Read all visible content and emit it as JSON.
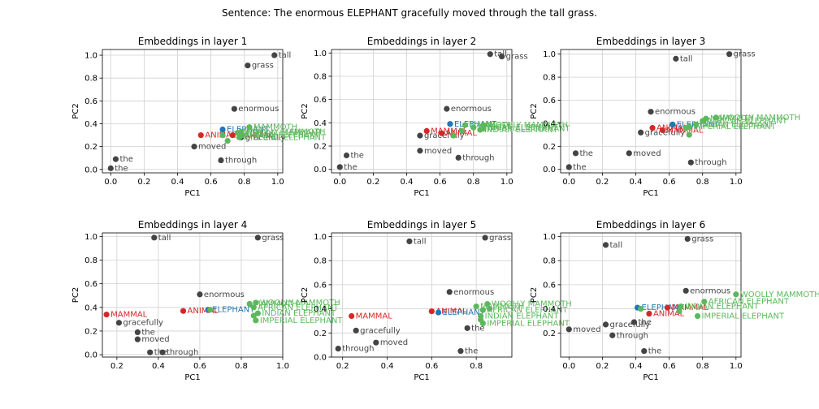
{
  "figure": {
    "title": "Sentence: The enormous ELEPHANT gracefully moved through the tall grass."
  },
  "colors": {
    "word": "#444444",
    "animal": "#d62728",
    "mammal": "#d62728",
    "elephant": "#1f77b4",
    "variant": "#5cb85c",
    "grid": "#d0d0d0"
  },
  "chart_data": [
    {
      "type": "scatter",
      "title": "Embeddings in layer 1",
      "xlabel": "PC1",
      "ylabel": "PC2",
      "xlim": [
        -0.05,
        1.03
      ],
      "ylim": [
        -0.03,
        1.05
      ],
      "xticks": [
        "0.0",
        "0.2",
        "0.4",
        "0.6",
        "0.8",
        "1.0"
      ],
      "yticks": [
        "0.0",
        "0.2",
        "0.4",
        "0.6",
        "0.8",
        "1.0"
      ],
      "grid": true,
      "points": [
        {
          "label": "the",
          "x": 0.0,
          "y": 0.01,
          "group": "word"
        },
        {
          "label": "the",
          "x": 0.03,
          "y": 0.09,
          "group": "word"
        },
        {
          "label": "moved",
          "x": 0.5,
          "y": 0.2,
          "group": "word"
        },
        {
          "label": "through",
          "x": 0.66,
          "y": 0.08,
          "group": "word"
        },
        {
          "label": "enormous",
          "x": 0.74,
          "y": 0.53,
          "group": "word"
        },
        {
          "label": "grass",
          "x": 0.82,
          "y": 0.91,
          "group": "word"
        },
        {
          "label": "tall",
          "x": 0.98,
          "y": 1.0,
          "group": "word"
        },
        {
          "label": "gracefully",
          "x": 0.78,
          "y": 0.28,
          "group": "word"
        },
        {
          "label": "ANIMAL",
          "x": 0.54,
          "y": 0.3,
          "group": "animal"
        },
        {
          "label": "MAMMAL",
          "x": 0.73,
          "y": 0.3,
          "group": "mammal"
        },
        {
          "label": "ELEPHANT",
          "x": 0.67,
          "y": 0.35,
          "group": "elephant"
        },
        {
          "label": "MAMMOTH",
          "x": 0.83,
          "y": 0.37,
          "group": "variant"
        },
        {
          "label": "WOOLLY MAMMOTH",
          "x": 0.78,
          "y": 0.33,
          "group": "variant"
        },
        {
          "label": "AFRICAN ELEPHANT",
          "x": 0.76,
          "y": 0.32,
          "group": "variant"
        },
        {
          "label": "INDIAN ELEPHANT",
          "x": 0.79,
          "y": 0.3,
          "group": "variant"
        },
        {
          "label": "IMPERIAL ELEPHANT",
          "x": 0.77,
          "y": 0.28,
          "group": "variant"
        },
        {
          "label": "",
          "x": 0.67,
          "y": 0.3,
          "group": "variant"
        },
        {
          "label": "",
          "x": 0.7,
          "y": 0.25,
          "group": "variant"
        }
      ]
    },
    {
      "type": "scatter",
      "title": "Embeddings in layer 2",
      "xlabel": "PC1",
      "ylabel": "PC2",
      "xlim": [
        -0.05,
        1.03
      ],
      "ylim": [
        -0.03,
        1.03
      ],
      "xticks": [
        "0.0",
        "0.2",
        "0.4",
        "0.6",
        "0.8",
        "1.0"
      ],
      "yticks": [
        "0.0",
        "0.2",
        "0.4",
        "0.6",
        "0.8",
        "1.0"
      ],
      "grid": true,
      "points": [
        {
          "label": "the",
          "x": 0.0,
          "y": 0.02,
          "group": "word"
        },
        {
          "label": "the",
          "x": 0.04,
          "y": 0.12,
          "group": "word"
        },
        {
          "label": "moved",
          "x": 0.48,
          "y": 0.16,
          "group": "word"
        },
        {
          "label": "through",
          "x": 0.71,
          "y": 0.1,
          "group": "word"
        },
        {
          "label": "enormous",
          "x": 0.64,
          "y": 0.52,
          "group": "word"
        },
        {
          "label": "tall",
          "x": 0.9,
          "y": 0.99,
          "group": "word"
        },
        {
          "label": "grass",
          "x": 0.97,
          "y": 0.97,
          "group": "word"
        },
        {
          "label": "gracefully",
          "x": 0.48,
          "y": 0.29,
          "group": "word"
        },
        {
          "label": "ANIMAL",
          "x": 0.61,
          "y": 0.31,
          "group": "animal"
        },
        {
          "label": "MAMMAL",
          "x": 0.52,
          "y": 0.33,
          "group": "mammal"
        },
        {
          "label": "ELEPHANT",
          "x": 0.66,
          "y": 0.39,
          "group": "elephant"
        },
        {
          "label": "MAMMOTH",
          "x": 0.75,
          "y": 0.38,
          "group": "variant"
        },
        {
          "label": "WOOLLY MAMMOTH",
          "x": 0.86,
          "y": 0.38,
          "group": "variant"
        },
        {
          "label": "AFRICAN ELEPHANT",
          "x": 0.8,
          "y": 0.36,
          "group": "variant"
        },
        {
          "label": "INDIAN ELEPHANT",
          "x": 0.84,
          "y": 0.34,
          "group": "variant"
        },
        {
          "label": "IMPERIAL ELEPHANT",
          "x": 0.86,
          "y": 0.35,
          "group": "variant"
        },
        {
          "label": "",
          "x": 0.68,
          "y": 0.29,
          "group": "variant"
        },
        {
          "label": "",
          "x": 0.73,
          "y": 0.33,
          "group": "variant"
        }
      ]
    },
    {
      "type": "scatter",
      "title": "Embeddings in layer 3",
      "xlabel": "PC1",
      "ylabel": "PC2",
      "xlim": [
        -0.05,
        1.03
      ],
      "ylim": [
        -0.03,
        1.04
      ],
      "xticks": [
        "0.0",
        "0.2",
        "0.4",
        "0.6",
        "0.8",
        "1.0"
      ],
      "yticks": [
        "0.0",
        "0.2",
        "0.4",
        "0.6",
        "0.8",
        "1.0"
      ],
      "grid": true,
      "points": [
        {
          "label": "the",
          "x": 0.0,
          "y": 0.02,
          "group": "word"
        },
        {
          "label": "the",
          "x": 0.04,
          "y": 0.14,
          "group": "word"
        },
        {
          "label": "moved",
          "x": 0.36,
          "y": 0.14,
          "group": "word"
        },
        {
          "label": "through",
          "x": 0.73,
          "y": 0.06,
          "group": "word"
        },
        {
          "label": "enormous",
          "x": 0.49,
          "y": 0.5,
          "group": "word"
        },
        {
          "label": "tall",
          "x": 0.64,
          "y": 0.96,
          "group": "word"
        },
        {
          "label": "grass",
          "x": 0.96,
          "y": 1.0,
          "group": "word"
        },
        {
          "label": "gracefully",
          "x": 0.43,
          "y": 0.32,
          "group": "word"
        },
        {
          "label": "ANIMAL",
          "x": 0.5,
          "y": 0.36,
          "group": "animal"
        },
        {
          "label": "MAMMAL",
          "x": 0.56,
          "y": 0.34,
          "group": "mammal"
        },
        {
          "label": "ELEPHANT",
          "x": 0.62,
          "y": 0.39,
          "group": "elephant"
        },
        {
          "label": "WOOLLY MAMMOTH",
          "x": 0.88,
          "y": 0.45,
          "group": "variant"
        },
        {
          "label": "MAMMOTH",
          "x": 0.82,
          "y": 0.44,
          "group": "variant"
        },
        {
          "label": "AFRICAN ELEPHANT",
          "x": 0.8,
          "y": 0.42,
          "group": "variant"
        },
        {
          "label": "INDIAN ELEPHANT",
          "x": 0.76,
          "y": 0.39,
          "group": "variant"
        },
        {
          "label": "IMPERIAL ELEPHANT",
          "x": 0.72,
          "y": 0.37,
          "group": "variant"
        },
        {
          "label": "",
          "x": 0.72,
          "y": 0.3,
          "group": "variant"
        },
        {
          "label": "",
          "x": 0.7,
          "y": 0.36,
          "group": "variant"
        }
      ]
    },
    {
      "type": "scatter",
      "title": "Embeddings in layer 4",
      "xlabel": "PC1",
      "ylabel": "PC2",
      "xlim": [
        0.13,
        1.0
      ],
      "ylim": [
        -0.02,
        1.03
      ],
      "xticks": [
        "0.2",
        "0.4",
        "0.6",
        "0.8",
        "1.0"
      ],
      "yticks": [
        "0.0",
        "0.2",
        "0.4",
        "0.6",
        "0.8",
        "1.0"
      ],
      "grid": true,
      "points": [
        {
          "label": "MAMMAL",
          "x": 0.15,
          "y": 0.34,
          "group": "mammal"
        },
        {
          "label": "gracefully",
          "x": 0.21,
          "y": 0.27,
          "group": "word"
        },
        {
          "label": "the",
          "x": 0.3,
          "y": 0.19,
          "group": "word"
        },
        {
          "label": "moved",
          "x": 0.3,
          "y": 0.13,
          "group": "word"
        },
        {
          "label": "the",
          "x": 0.36,
          "y": 0.02,
          "group": "word"
        },
        {
          "label": "through",
          "x": 0.42,
          "y": 0.02,
          "group": "word"
        },
        {
          "label": "tall",
          "x": 0.38,
          "y": 0.99,
          "group": "word"
        },
        {
          "label": "grass",
          "x": 0.88,
          "y": 0.99,
          "group": "word"
        },
        {
          "label": "enormous",
          "x": 0.6,
          "y": 0.51,
          "group": "word"
        },
        {
          "label": "ANIMAL",
          "x": 0.52,
          "y": 0.37,
          "group": "animal"
        },
        {
          "label": "ELEPHANT",
          "x": 0.64,
          "y": 0.38,
          "group": "elephant"
        },
        {
          "label": "WOOLLY MAMMOTH",
          "x": 0.87,
          "y": 0.44,
          "group": "variant"
        },
        {
          "label": "MAMMOTH",
          "x": 0.84,
          "y": 0.43,
          "group": "variant"
        },
        {
          "label": "AFRICAN ELEPHANT",
          "x": 0.86,
          "y": 0.4,
          "group": "variant"
        },
        {
          "label": "INDIAN ELEPHANT",
          "x": 0.88,
          "y": 0.35,
          "group": "variant"
        },
        {
          "label": "IMPERIAL ELEPHANT",
          "x": 0.87,
          "y": 0.29,
          "group": "variant"
        },
        {
          "label": "",
          "x": 0.65,
          "y": 0.38,
          "group": "variant"
        },
        {
          "label": "",
          "x": 0.86,
          "y": 0.33,
          "group": "variant"
        }
      ]
    },
    {
      "type": "scatter",
      "title": "Embeddings in layer 5",
      "xlabel": "PC1",
      "ylabel": "PC2",
      "xlim": [
        0.15,
        0.96
      ],
      "ylim": [
        0.0,
        1.03
      ],
      "xticks": [
        "0.2",
        "0.4",
        "0.6",
        "0.8"
      ],
      "yticks": [
        "0.0",
        "0.2",
        "0.4",
        "0.6",
        "0.8",
        "1.0"
      ],
      "grid": true,
      "points": [
        {
          "label": "through",
          "x": 0.18,
          "y": 0.07,
          "group": "word"
        },
        {
          "label": "MAMMAL",
          "x": 0.24,
          "y": 0.34,
          "group": "mammal"
        },
        {
          "label": "gracefully",
          "x": 0.26,
          "y": 0.22,
          "group": "word"
        },
        {
          "label": "moved",
          "x": 0.35,
          "y": 0.12,
          "group": "word"
        },
        {
          "label": "tall",
          "x": 0.5,
          "y": 0.96,
          "group": "word"
        },
        {
          "label": "grass",
          "x": 0.84,
          "y": 0.99,
          "group": "word"
        },
        {
          "label": "enormous",
          "x": 0.68,
          "y": 0.54,
          "group": "word"
        },
        {
          "label": "ANIMAL",
          "x": 0.6,
          "y": 0.38,
          "group": "animal"
        },
        {
          "label": "ELEPHANT",
          "x": 0.63,
          "y": 0.37,
          "group": "elephant"
        },
        {
          "label": "the",
          "x": 0.76,
          "y": 0.24,
          "group": "word"
        },
        {
          "label": "the",
          "x": 0.73,
          "y": 0.05,
          "group": "word"
        },
        {
          "label": "WOOLLY MAMMOTH",
          "x": 0.85,
          "y": 0.44,
          "group": "variant"
        },
        {
          "label": "MAMMOTH",
          "x": 0.8,
          "y": 0.42,
          "group": "variant"
        },
        {
          "label": "AFRICAN ELEPHANT",
          "x": 0.83,
          "y": 0.39,
          "group": "variant"
        },
        {
          "label": "INDIAN ELEPHANT",
          "x": 0.82,
          "y": 0.34,
          "group": "variant"
        },
        {
          "label": "IMPERIAL ELEPHANT",
          "x": 0.83,
          "y": 0.28,
          "group": "variant"
        },
        {
          "label": "",
          "x": 0.82,
          "y": 0.31,
          "group": "variant"
        },
        {
          "label": "",
          "x": 0.86,
          "y": 0.4,
          "group": "variant"
        }
      ]
    },
    {
      "type": "scatter",
      "title": "Embeddings in layer 6",
      "xlabel": "PC1",
      "ylabel": "PC2",
      "xlim": [
        -0.05,
        1.03
      ],
      "ylim": [
        0.0,
        1.03
      ],
      "xticks": [
        "0.0",
        "0.2",
        "0.4",
        "0.6",
        "0.8",
        "1.0"
      ],
      "yticks": [
        "0.2",
        "0.4",
        "0.6",
        "0.8",
        "1.0"
      ],
      "grid": true,
      "points": [
        {
          "label": "moved",
          "x": 0.0,
          "y": 0.23,
          "group": "word"
        },
        {
          "label": "tall",
          "x": 0.22,
          "y": 0.93,
          "group": "word"
        },
        {
          "label": "grass",
          "x": 0.71,
          "y": 0.98,
          "group": "word"
        },
        {
          "label": "gracefully",
          "x": 0.22,
          "y": 0.27,
          "group": "word"
        },
        {
          "label": "through",
          "x": 0.26,
          "y": 0.18,
          "group": "word"
        },
        {
          "label": "the",
          "x": 0.39,
          "y": 0.29,
          "group": "word"
        },
        {
          "label": "the",
          "x": 0.45,
          "y": 0.05,
          "group": "word"
        },
        {
          "label": "enormous",
          "x": 0.7,
          "y": 0.55,
          "group": "word"
        },
        {
          "label": "ELEPHANT",
          "x": 0.41,
          "y": 0.41,
          "group": "elephant"
        },
        {
          "label": "ANIMAL",
          "x": 0.48,
          "y": 0.36,
          "group": "animal"
        },
        {
          "label": "MAMMAL",
          "x": 0.59,
          "y": 0.41,
          "group": "mammal"
        },
        {
          "label": "WOOLLY MAMMOTH",
          "x": 1.0,
          "y": 0.52,
          "group": "variant"
        },
        {
          "label": "AFRICAN ELEPHANT",
          "x": 0.81,
          "y": 0.46,
          "group": "variant"
        },
        {
          "label": "INDIAN ELEPHANT",
          "x": 0.67,
          "y": 0.42,
          "group": "variant"
        },
        {
          "label": "IMPERIAL ELEPHANT",
          "x": 0.77,
          "y": 0.34,
          "group": "variant"
        },
        {
          "label": "",
          "x": 0.66,
          "y": 0.38,
          "group": "variant"
        },
        {
          "label": "",
          "x": 0.43,
          "y": 0.4,
          "group": "variant"
        }
      ]
    }
  ]
}
